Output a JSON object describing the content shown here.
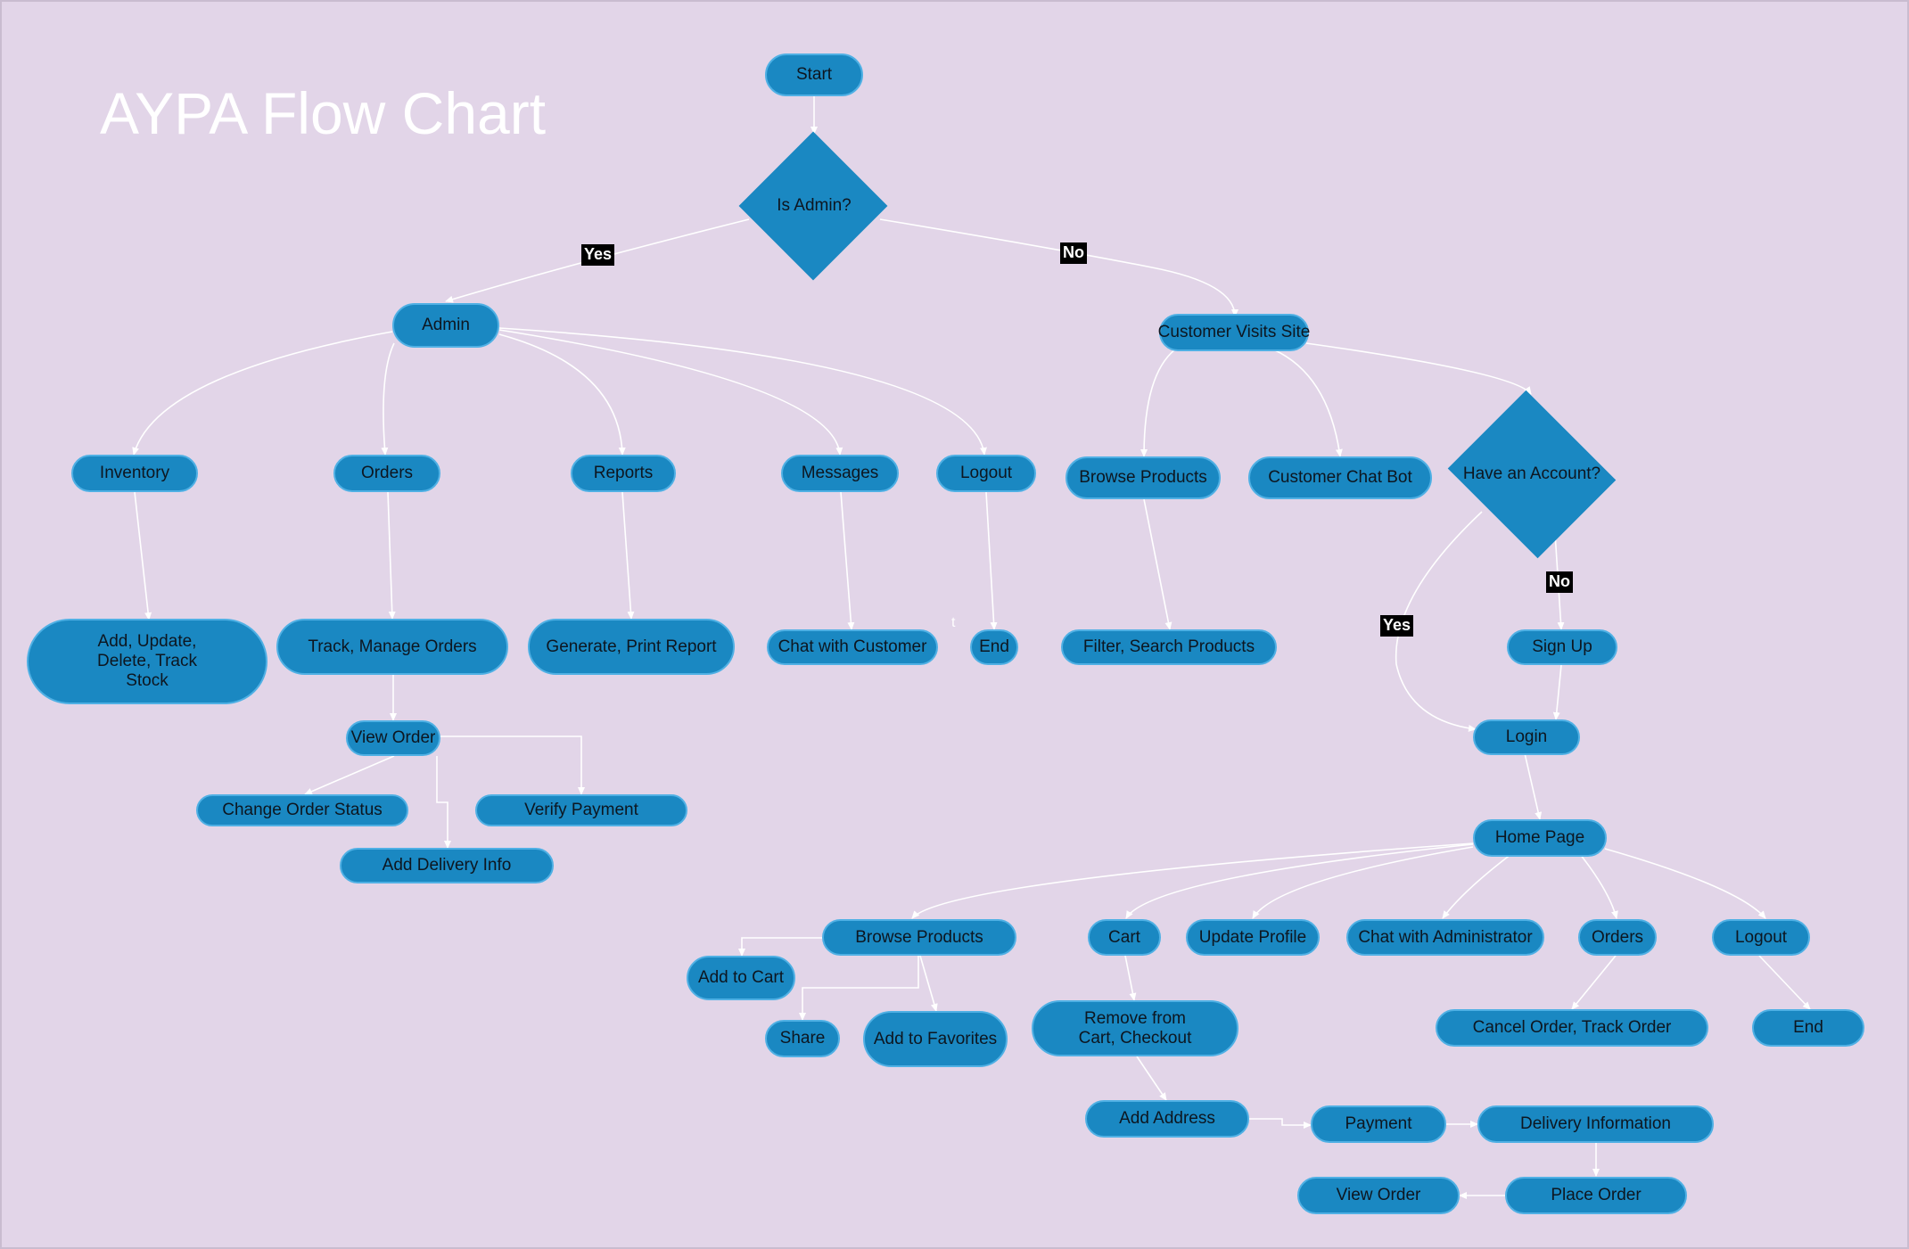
{
  "diagram": {
    "title": "AYPA Flow Chart",
    "colors": {
      "background": "#e2d5e8",
      "node_fill": "#1a88c2",
      "node_border": "#4fb0e4",
      "edge": "#ffffff",
      "edge_label_bg": "#000000",
      "node_text": "#0d1620"
    },
    "decisions": {
      "is_admin": "Is Admin?",
      "have_account": "Have an Account?"
    },
    "edge_labels": {
      "admin_yes": "Yes",
      "admin_no": "No",
      "account_yes": "Yes",
      "account_no": "No"
    },
    "stray_mark": "t",
    "nodes": {
      "start": "Start",
      "admin": "Admin",
      "customer_visits_site": "Customer Visits Site",
      "inventory": "Inventory",
      "orders_admin": "Orders",
      "reports": "Reports",
      "messages": "Messages",
      "logout_admin": "Logout",
      "browse_products_top": "Browse Products",
      "customer_chat_bot": "Customer Chat Bot",
      "add_update_delete": "Add, Update, Delete, Track Stock",
      "track_manage_orders": "Track, Manage Orders",
      "generate_print_report": "Generate, Print Report",
      "chat_with_customer": "Chat with Customer",
      "end_admin": "End",
      "filter_search_products": "Filter, Search Products",
      "sign_up": "Sign Up",
      "login": "Login",
      "view_order_admin": "View Order",
      "change_order_status": "Change Order Status",
      "verify_payment": "Verify Payment",
      "add_delivery_info": "Add Delivery Info",
      "home_page": "Home Page",
      "browse_products_home": "Browse Products",
      "cart": "Cart",
      "update_profile": "Update Profile",
      "chat_with_administrator": "Chat with Administrator",
      "orders_customer": "Orders",
      "logout_customer": "Logout",
      "add_to_cart": "Add to Cart",
      "share": "Share",
      "add_to_favorites": "Add to Favorites",
      "remove_from_cart": "Remove from Cart, Checkout",
      "cancel_track_order": "Cancel Order, Track Order",
      "end_customer": "End",
      "add_address": "Add Address",
      "payment": "Payment",
      "delivery_information": "Delivery Information",
      "view_order_customer": "View Order",
      "place_order": "Place Order"
    }
  }
}
